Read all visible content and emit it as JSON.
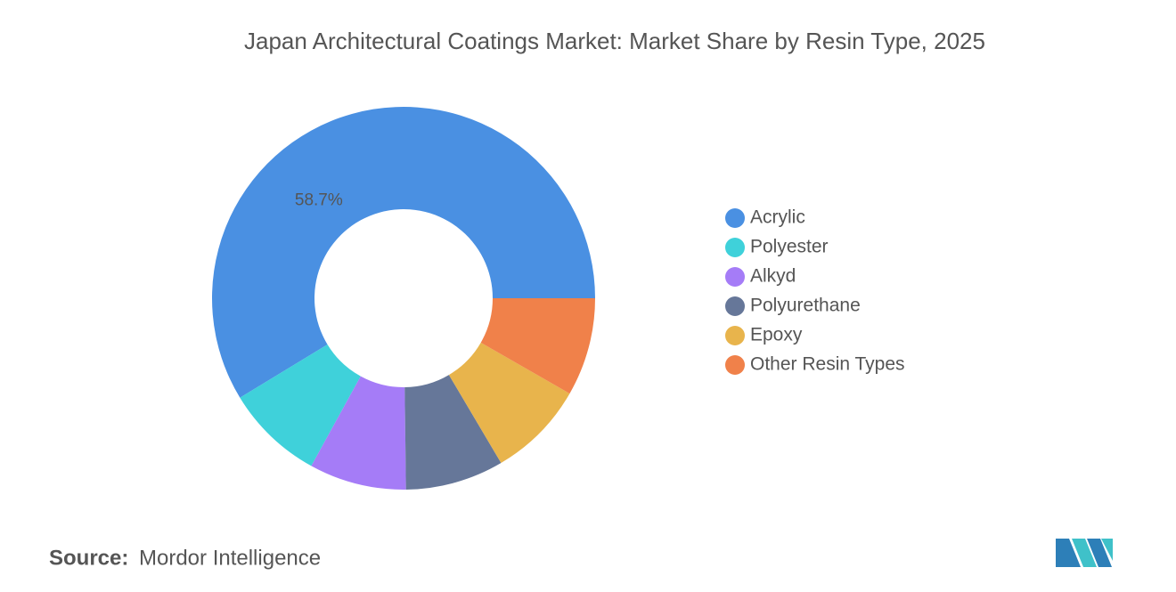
{
  "chart_data": {
    "type": "donut",
    "title": "Japan Architectural Coatings Market: Market Share by Resin Type, 2025",
    "categories": [
      "Acrylic",
      "Polyester",
      "Alkyd",
      "Polyurethane",
      "Epoxy",
      "Other Resin Types"
    ],
    "values": [
      58.7,
      8.3,
      8.2,
      8.3,
      8.2,
      8.3
    ],
    "value_labels": [
      "58.7%",
      null,
      null,
      null,
      null,
      null
    ],
    "colors": [
      "#4a90e2",
      "#3fd1da",
      "#a57cf7",
      "#667799",
      "#e8b44c",
      "#f0814a"
    ],
    "legend": "right"
  },
  "source": {
    "label": "Source:",
    "text": "Mordor Intelligence"
  }
}
